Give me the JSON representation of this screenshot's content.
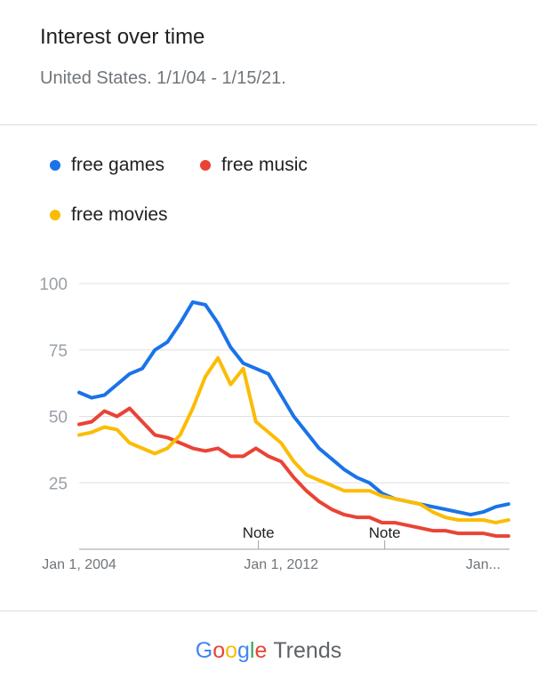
{
  "header": {
    "title": "Interest over time",
    "subtitle": "United States. 1/1/04 - 1/15/21."
  },
  "footer": {
    "brand_letters": [
      "G",
      "o",
      "o",
      "g",
      "l",
      "e"
    ],
    "brand_colors": [
      "#4285F4",
      "#EA4335",
      "#FBBC05",
      "#4285F4",
      "#34A853",
      "#EA4335"
    ],
    "product": "Trends"
  },
  "chart_data": {
    "type": "line",
    "ylim": [
      0,
      100
    ],
    "yticks": [
      25,
      50,
      75,
      100
    ],
    "ytick_labels": [
      "25",
      "50",
      "75",
      "100"
    ],
    "xlim": [
      2004.0,
      2021.04
    ],
    "xticks": [
      2004,
      2012,
      2020
    ],
    "xtick_labels": [
      "Jan 1, 2004",
      "Jan 1, 2012",
      "Jan..."
    ],
    "grid": true,
    "legend_position": "top-left",
    "annotations": [
      {
        "label": "Note",
        "x": 2011.1
      },
      {
        "label": "Note",
        "x": 2016.1
      }
    ],
    "series": [
      {
        "name": "free games",
        "color": "#1A73E8",
        "x": [
          2004.0,
          2004.5,
          2005.0,
          2005.5,
          2006.0,
          2006.5,
          2007.0,
          2007.5,
          2008.0,
          2008.5,
          2009.0,
          2009.5,
          2010.0,
          2010.5,
          2011.0,
          2011.5,
          2012.0,
          2012.5,
          2013.0,
          2013.5,
          2014.0,
          2014.5,
          2015.0,
          2015.5,
          2016.0,
          2016.5,
          2017.0,
          2017.5,
          2018.0,
          2018.5,
          2019.0,
          2019.5,
          2020.0,
          2020.5,
          2021.0
        ],
        "y": [
          59,
          57,
          58,
          62,
          66,
          68,
          75,
          78,
          85,
          93,
          92,
          85,
          76,
          70,
          68,
          66,
          58,
          50,
          44,
          38,
          34,
          30,
          27,
          25,
          21,
          19,
          18,
          17,
          16,
          15,
          14,
          13,
          14,
          16,
          17
        ]
      },
      {
        "name": "free music",
        "color": "#EA4335",
        "x": [
          2004.0,
          2004.5,
          2005.0,
          2005.5,
          2006.0,
          2006.5,
          2007.0,
          2007.5,
          2008.0,
          2008.5,
          2009.0,
          2009.5,
          2010.0,
          2010.5,
          2011.0,
          2011.5,
          2012.0,
          2012.5,
          2013.0,
          2013.5,
          2014.0,
          2014.5,
          2015.0,
          2015.5,
          2016.0,
          2016.5,
          2017.0,
          2017.5,
          2018.0,
          2018.5,
          2019.0,
          2019.5,
          2020.0,
          2020.5,
          2021.0
        ],
        "y": [
          47,
          48,
          52,
          50,
          53,
          48,
          43,
          42,
          40,
          38,
          37,
          38,
          35,
          35,
          38,
          35,
          33,
          27,
          22,
          18,
          15,
          13,
          12,
          12,
          10,
          10,
          9,
          8,
          7,
          7,
          6,
          6,
          6,
          5,
          5
        ]
      },
      {
        "name": "free movies",
        "color": "#FBBC04",
        "x": [
          2004.0,
          2004.5,
          2005.0,
          2005.5,
          2006.0,
          2006.5,
          2007.0,
          2007.5,
          2008.0,
          2008.5,
          2009.0,
          2009.5,
          2010.0,
          2010.5,
          2011.0,
          2011.5,
          2012.0,
          2012.5,
          2013.0,
          2013.5,
          2014.0,
          2014.5,
          2015.0,
          2015.5,
          2016.0,
          2016.5,
          2017.0,
          2017.5,
          2018.0,
          2018.5,
          2019.0,
          2019.5,
          2020.0,
          2020.5,
          2021.0
        ],
        "y": [
          43,
          44,
          46,
          45,
          40,
          38,
          36,
          38,
          43,
          53,
          65,
          72,
          62,
          68,
          48,
          44,
          40,
          33,
          28,
          26,
          24,
          22,
          22,
          22,
          20,
          19,
          18,
          17,
          14,
          12,
          11,
          11,
          11,
          10,
          11
        ]
      }
    ]
  }
}
